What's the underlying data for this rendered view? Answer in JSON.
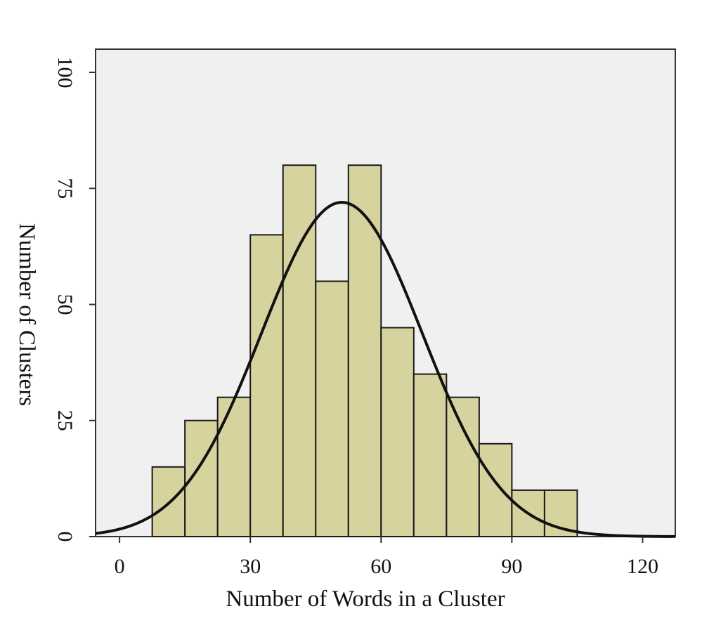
{
  "chart_data": {
    "type": "bar",
    "subtype": "histogram_with_normal_curve",
    "xlabel": "Number of Words in a Cluster",
    "ylabel": "Number of Clusters",
    "xlim": [
      -5.5,
      127.5
    ],
    "ylim": [
      0,
      105
    ],
    "xticks": [
      0,
      30,
      60,
      90,
      120
    ],
    "yticks": [
      0,
      25,
      50,
      75,
      100
    ],
    "bin_width": 7.5,
    "bins": [
      {
        "start": 7.5,
        "end": 15,
        "count": 15
      },
      {
        "start": 15,
        "end": 22.5,
        "count": 25
      },
      {
        "start": 22.5,
        "end": 30,
        "count": 30
      },
      {
        "start": 30,
        "end": 37.5,
        "count": 65
      },
      {
        "start": 37.5,
        "end": 45,
        "count": 80
      },
      {
        "start": 45,
        "end": 52.5,
        "count": 55
      },
      {
        "start": 52.5,
        "end": 60,
        "count": 80
      },
      {
        "start": 60,
        "end": 67.5,
        "count": 45
      },
      {
        "start": 67.5,
        "end": 75,
        "count": 35
      },
      {
        "start": 75,
        "end": 82.5,
        "count": 30
      },
      {
        "start": 82.5,
        "end": 90,
        "count": 20
      },
      {
        "start": 90,
        "end": 97.5,
        "count": 10
      },
      {
        "start": 97.5,
        "end": 105,
        "count": 10
      }
    ],
    "normal_curve": {
      "mean": 51,
      "sd": 18.5,
      "peak": 72
    },
    "grid": false
  }
}
